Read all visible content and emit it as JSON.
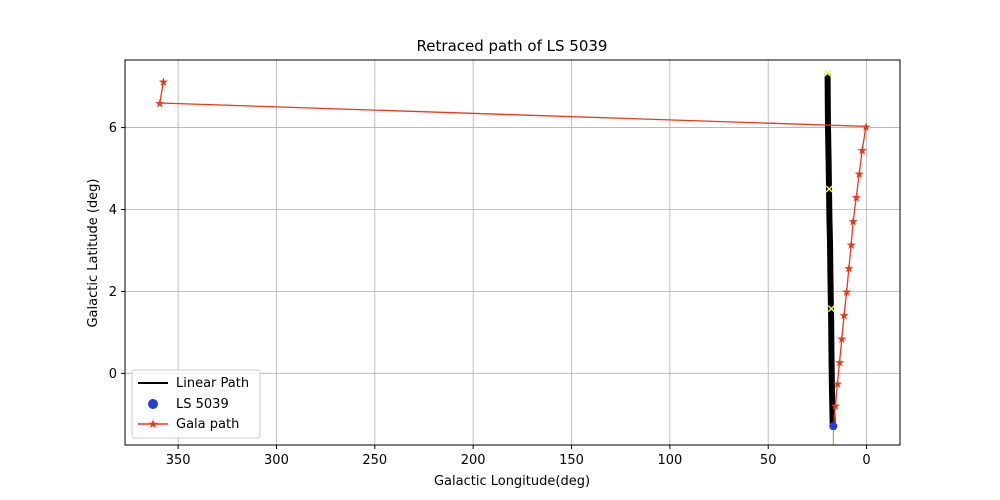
{
  "chart_data": {
    "type": "line",
    "title": "Retraced path of LS 5039",
    "xlabel": "Galactic Longitude(deg)",
    "ylabel": "Galactic Latitude (deg)",
    "xlim": [
      377,
      -17
    ],
    "ylim": [
      -1.75,
      7.65
    ],
    "x_inverted": true,
    "xticks": [
      350,
      300,
      250,
      200,
      150,
      100,
      50,
      0
    ],
    "yticks": [
      0,
      2,
      4,
      6
    ],
    "grid": true,
    "legend_position": "lower-left",
    "colors": {
      "linear_path": "#000000",
      "ls5039": "#1f3fd6",
      "gala_path": "#e8391a",
      "markers_x": "#f5f542",
      "thin_line": "#b5882a"
    },
    "series": [
      {
        "name": "Linear Path",
        "kind": "line",
        "points": [
          [
            19.8,
            7.3
          ],
          [
            19.7,
            6.6
          ],
          [
            19.6,
            6.0
          ],
          [
            19.3,
            5.2
          ],
          [
            19.1,
            4.5
          ],
          [
            18.9,
            3.8
          ],
          [
            18.6,
            3.2
          ],
          [
            18.4,
            2.4
          ],
          [
            18.2,
            1.8
          ],
          [
            18.0,
            1.2
          ],
          [
            17.8,
            0.4
          ],
          [
            17.6,
            -0.3
          ],
          [
            17.4,
            -0.8
          ],
          [
            17.2,
            -1.3
          ]
        ]
      },
      {
        "name": "LS 5039",
        "kind": "scatter",
        "points": [
          [
            16.9,
            -1.29
          ]
        ]
      },
      {
        "name": "Gala path",
        "kind": "line-star",
        "points": [
          [
            357.5,
            7.12
          ],
          [
            359.3,
            6.6
          ],
          [
            0.3,
            6.03
          ],
          [
            2.2,
            5.45
          ],
          [
            3.7,
            4.88
          ],
          [
            5.2,
            4.3
          ],
          [
            6.8,
            3.72
          ],
          [
            7.8,
            3.15
          ],
          [
            9.0,
            2.57
          ],
          [
            10.1,
            2.0
          ],
          [
            11.4,
            1.43
          ],
          [
            12.6,
            0.85
          ],
          [
            13.7,
            0.28
          ],
          [
            14.8,
            -0.25
          ],
          [
            15.8,
            -0.78
          ],
          [
            16.9,
            -1.29
          ]
        ]
      },
      {
        "kind": "x-markers",
        "points": [
          [
            19.8,
            7.33
          ],
          [
            19.0,
            4.5
          ],
          [
            17.9,
            1.58
          ]
        ]
      }
    ],
    "legend": [
      "Linear Path",
      "LS 5039",
      "Gala path"
    ]
  }
}
